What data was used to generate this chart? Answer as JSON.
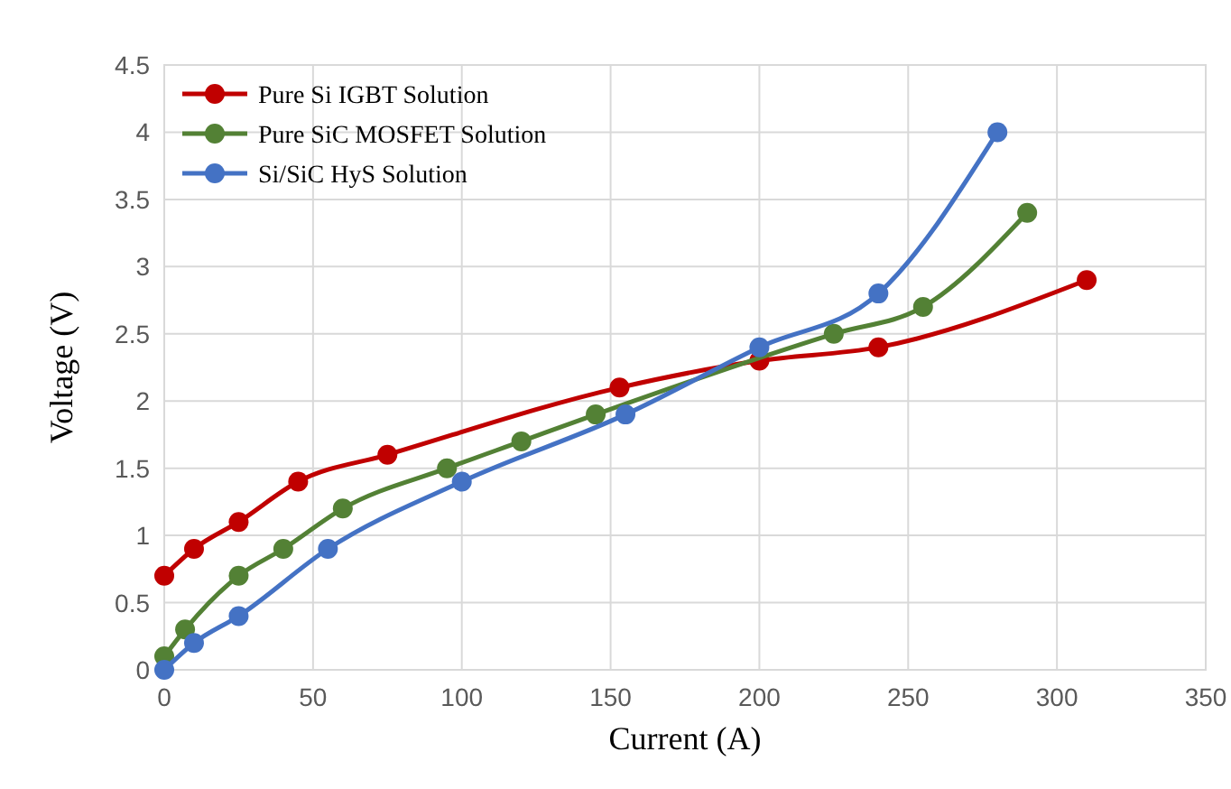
{
  "chart_data": {
    "type": "line",
    "xlabel": "Current (A)",
    "ylabel": "Voltage (V)",
    "xlim": [
      0,
      350
    ],
    "xticks": [
      0,
      50,
      100,
      150,
      200,
      250,
      300,
      350
    ],
    "ylim": [
      0,
      4.5
    ],
    "yticks": [
      0,
      0.5,
      1,
      1.5,
      2,
      2.5,
      3,
      3.5,
      4,
      4.5
    ],
    "grid": true,
    "legend": "top left",
    "marker": "circle",
    "line_style": "solid",
    "series": [
      {
        "name": "Pure Si IGBT Solution",
        "color": "#c00000",
        "x": [
          0,
          10,
          25,
          45,
          75,
          153,
          200,
          240,
          310
        ],
        "values": [
          0.7,
          0.9,
          1.1,
          1.4,
          1.6,
          2.1,
          2.3,
          2.4,
          2.9
        ]
      },
      {
        "name": "Pure SiC MOSFET Solution",
        "color": "#538135",
        "x": [
          0,
          7,
          25,
          40,
          60,
          95,
          120,
          145,
          225,
          255,
          290
        ],
        "values": [
          0.1,
          0.3,
          0.7,
          0.9,
          1.2,
          1.5,
          1.7,
          1.9,
          2.5,
          2.7,
          3.4
        ]
      },
      {
        "name": "Si/SiC HyS Solution",
        "color": "#4472c4",
        "x": [
          0,
          10,
          25,
          55,
          100,
          155,
          200,
          240,
          280
        ],
        "values": [
          0,
          0.2,
          0.4,
          0.9,
          1.4,
          1.9,
          2.4,
          2.8,
          4
        ]
      }
    ]
  }
}
